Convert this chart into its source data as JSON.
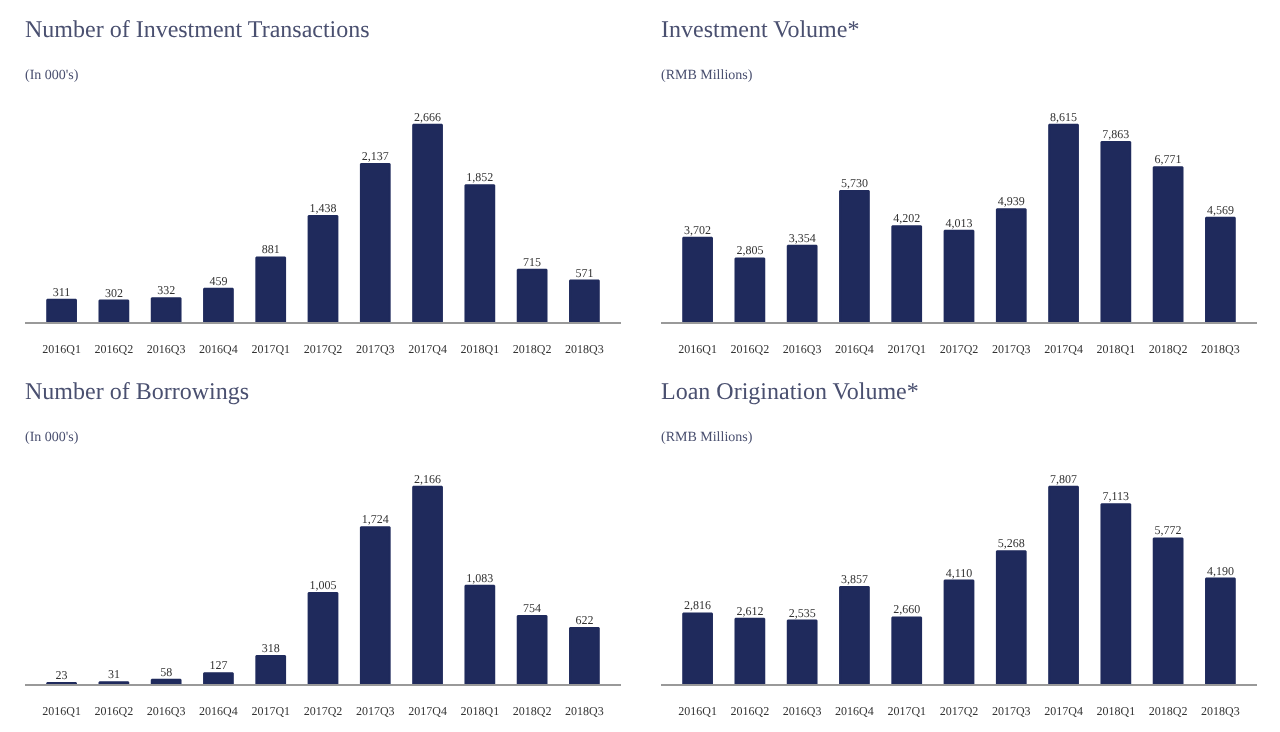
{
  "chart_data": [
    {
      "type": "bar",
      "title": "Number of Investment Transactions",
      "subtitle": "(In 000's)",
      "categories": [
        "2016Q1",
        "2016Q2",
        "2016Q3",
        "2016Q4",
        "2017Q1",
        "2017Q2",
        "2017Q3",
        "2017Q4",
        "2018Q1",
        "2018Q2",
        "2018Q3"
      ],
      "values": [
        311,
        302,
        332,
        459,
        881,
        1438,
        2137,
        2666,
        1852,
        715,
        571
      ],
      "value_labels": [
        "311",
        "302",
        "332",
        "459",
        "881",
        "1,438",
        "2,137",
        "2,666",
        "1,852",
        "715",
        "571"
      ],
      "color": "#1f2a5c",
      "tick_labels": "x",
      "grid": false
    },
    {
      "type": "bar",
      "title": "Investment Volume*",
      "subtitle": "(RMB Millions)",
      "categories": [
        "2016Q1",
        "2016Q2",
        "2016Q3",
        "2016Q4",
        "2017Q1",
        "2017Q2",
        "2017Q3",
        "2017Q4",
        "2018Q1",
        "2018Q2",
        "2018Q3"
      ],
      "values": [
        3702,
        2805,
        3354,
        5730,
        4202,
        4013,
        4939,
        8615,
        7863,
        6771,
        4569
      ],
      "value_labels": [
        "3,702",
        "2,805",
        "3,354",
        "5,730",
        "4,202",
        "4,013",
        "4,939",
        "8,615",
        "7,863",
        "6,771",
        "4,569"
      ],
      "color": "#1f2a5c",
      "tick_labels": "x",
      "grid": false
    },
    {
      "type": "bar",
      "title": "Number of Borrowings",
      "subtitle": "(In 000's)",
      "categories": [
        "2016Q1",
        "2016Q2",
        "2016Q3",
        "2016Q4",
        "2017Q1",
        "2017Q2",
        "2017Q3",
        "2017Q4",
        "2018Q1",
        "2018Q2",
        "2018Q3"
      ],
      "values": [
        23,
        31,
        58,
        127,
        318,
        1005,
        1724,
        2166,
        1083,
        754,
        622
      ],
      "value_labels": [
        "23",
        "31",
        "58",
        "127",
        "318",
        "1,005",
        "1,724",
        "2,166",
        "1,083",
        "754",
        "622"
      ],
      "color": "#1f2a5c",
      "tick_labels": "x",
      "grid": false
    },
    {
      "type": "bar",
      "title": "Loan Origination Volume*",
      "subtitle": "(RMB Millions)",
      "categories": [
        "2016Q1",
        "2016Q2",
        "2016Q3",
        "2016Q4",
        "2017Q1",
        "2017Q2",
        "2017Q3",
        "2017Q4",
        "2018Q1",
        "2018Q2",
        "2018Q3"
      ],
      "values": [
        2816,
        2612,
        2535,
        3857,
        2660,
        4110,
        5268,
        7807,
        7113,
        5772,
        4190
      ],
      "value_labels": [
        "2,816",
        "2,612",
        "2,535",
        "3,857",
        "2,660",
        "4,110",
        "5,268",
        "7,807",
        "7,113",
        "5,772",
        "4,190"
      ],
      "color": "#1f2a5c",
      "tick_labels": "x",
      "grid": false
    }
  ]
}
